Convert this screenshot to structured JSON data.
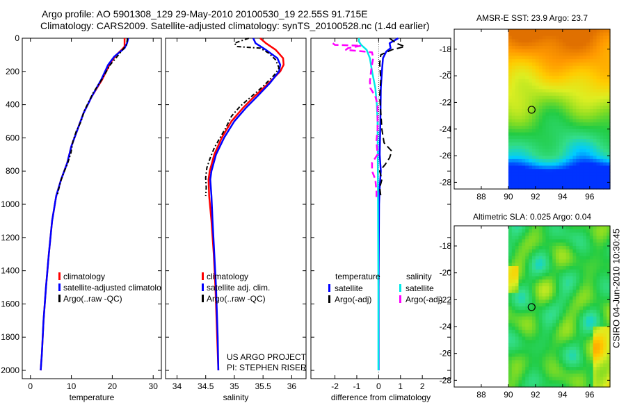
{
  "header": {
    "line1": "Argo profile: AO 5901308_129 29-May-2010 20100530_19 22.55S 91.715E",
    "line2": "Climatology: CARS2009. Satellite-adjusted climatology: synTS_20100528.nc (1.4d earlier)"
  },
  "side_label": "CSIRO 04-Jun-2010 10:30:45",
  "colors": {
    "red": "#ff0000",
    "blue": "#0000ff",
    "black": "#000000",
    "cyan": "#00e8e8",
    "magenta": "#ff00ff"
  },
  "chart_data": [
    {
      "type": "line",
      "id": "temperature",
      "xlabel": "temperature",
      "xlim": [
        -2,
        32
      ],
      "xticks": [
        0,
        10,
        20,
        30
      ],
      "ylim": [
        0,
        2050
      ],
      "yticks": [
        0,
        200,
        400,
        600,
        800,
        1000,
        1200,
        1400,
        1600,
        1800,
        2000
      ],
      "legend": {
        "position": "lower-center",
        "entries": [
          "climatology",
          "satellite-adjusted climatology",
          "Argo(..raw -QC)"
        ]
      },
      "series": [
        {
          "name": "climatology",
          "color": "red",
          "dash": "",
          "points": [
            [
              23.0,
              0
            ],
            [
              23.0,
              20
            ],
            [
              23.0,
              50
            ],
            [
              22.3,
              70
            ],
            [
              21.0,
              100
            ],
            [
              19.5,
              150
            ],
            [
              17.5,
              250
            ],
            [
              15.0,
              350
            ],
            [
              13.0,
              450
            ],
            [
              11.5,
              550
            ],
            [
              10.0,
              650
            ],
            [
              9.0,
              750
            ],
            [
              7.5,
              850
            ],
            [
              6.3,
              950
            ],
            [
              5.3,
              1100
            ],
            [
              4.5,
              1300
            ],
            [
              3.8,
              1500
            ],
            [
              3.2,
              1700
            ],
            [
              2.8,
              1900
            ],
            [
              2.5,
              2000
            ]
          ]
        },
        {
          "name": "satellite-adjusted climatology",
          "color": "blue",
          "dash": "",
          "points": [
            [
              23.9,
              0
            ],
            [
              23.6,
              30
            ],
            [
              23.0,
              60
            ],
            [
              22.0,
              80
            ],
            [
              20.5,
              110
            ],
            [
              19.0,
              160
            ],
            [
              17.3,
              250
            ],
            [
              15.0,
              350
            ],
            [
              13.0,
              450
            ],
            [
              11.5,
              550
            ],
            [
              10.0,
              650
            ],
            [
              9.0,
              750
            ],
            [
              7.5,
              850
            ],
            [
              6.3,
              950
            ],
            [
              5.3,
              1100
            ],
            [
              4.5,
              1300
            ],
            [
              3.8,
              1500
            ],
            [
              3.2,
              1700
            ],
            [
              2.8,
              1900
            ],
            [
              2.5,
              2000
            ]
          ]
        },
        {
          "name": "Argo(..raw -QC)",
          "color": "black",
          "dash": "6,3,2,3",
          "points": [
            [
              23.7,
              0
            ],
            [
              23.5,
              40
            ],
            [
              22.5,
              70
            ],
            [
              21.2,
              110
            ],
            [
              19.5,
              160
            ],
            [
              17.4,
              250
            ],
            [
              15.3,
              330
            ],
            [
              13.1,
              440
            ],
            [
              12.4,
              500
            ],
            [
              11.2,
              560
            ],
            [
              10.4,
              620
            ],
            [
              9.9,
              690
            ],
            [
              9.0,
              760
            ],
            [
              8.3,
              800
            ],
            [
              7.4,
              860
            ],
            [
              6.5,
              950
            ]
          ]
        }
      ]
    },
    {
      "type": "line",
      "id": "salinity",
      "xlabel": "salinity",
      "xlim": [
        33.8,
        36.25
      ],
      "xticks": [
        34,
        34.5,
        35,
        35.5,
        36
      ],
      "ylim": [
        0,
        2050
      ],
      "legend": {
        "position": "lower-center",
        "entries": [
          "climatology",
          "satellite adj. clim.",
          "Argo(..raw -QC)"
        ]
      },
      "annotation": [
        "US ARGO PROJECT",
        "PI: STEPHEN RISER"
      ],
      "series": [
        {
          "name": "climatology",
          "color": "red",
          "dash": "",
          "points": [
            [
              35.45,
              0
            ],
            [
              35.55,
              30
            ],
            [
              35.72,
              70
            ],
            [
              35.85,
              120
            ],
            [
              35.86,
              160
            ],
            [
              35.8,
              200
            ],
            [
              35.6,
              270
            ],
            [
              35.35,
              350
            ],
            [
              35.15,
              420
            ],
            [
              34.95,
              500
            ],
            [
              34.78,
              600
            ],
            [
              34.65,
              700
            ],
            [
              34.57,
              800
            ],
            [
              34.55,
              850
            ],
            [
              34.56,
              950
            ],
            [
              34.6,
              1100
            ],
            [
              34.64,
              1300
            ],
            [
              34.67,
              1500
            ],
            [
              34.7,
              1800
            ],
            [
              34.72,
              2000
            ]
          ]
        },
        {
          "name": "satellite adj. clim.",
          "color": "blue",
          "dash": "",
          "points": [
            [
              35.33,
              0
            ],
            [
              35.37,
              30
            ],
            [
              35.55,
              70
            ],
            [
              35.75,
              120
            ],
            [
              35.8,
              160
            ],
            [
              35.78,
              200
            ],
            [
              35.62,
              270
            ],
            [
              35.4,
              350
            ],
            [
              35.2,
              420
            ],
            [
              35.0,
              500
            ],
            [
              34.82,
              600
            ],
            [
              34.68,
              700
            ],
            [
              34.6,
              800
            ],
            [
              34.58,
              850
            ],
            [
              34.6,
              950
            ],
            [
              34.62,
              1100
            ],
            [
              34.65,
              1300
            ],
            [
              34.68,
              1500
            ],
            [
              34.71,
              1800
            ],
            [
              34.72,
              2000
            ]
          ]
        },
        {
          "name": "Argo(..raw -QC)",
          "color": "black",
          "dash": "6,3,2,3",
          "points": [
            [
              35.25,
              0
            ],
            [
              35.0,
              30
            ],
            [
              35.05,
              50
            ],
            [
              35.45,
              60
            ],
            [
              35.6,
              90
            ],
            [
              35.72,
              130
            ],
            [
              35.78,
              180
            ],
            [
              35.7,
              220
            ],
            [
              35.5,
              290
            ],
            [
              35.3,
              350
            ],
            [
              35.1,
              410
            ],
            [
              34.95,
              470
            ],
            [
              34.85,
              540
            ],
            [
              34.75,
              600
            ],
            [
              34.65,
              660
            ],
            [
              34.58,
              720
            ],
            [
              34.52,
              780
            ],
            [
              34.5,
              840
            ],
            [
              34.51,
              900
            ],
            [
              34.5,
              950
            ]
          ]
        }
      ]
    },
    {
      "type": "line",
      "id": "difference",
      "xlabel": "difference from climatology",
      "xlim": [
        -3.1,
        3.3
      ],
      "xticks": [
        -2,
        -1,
        0,
        1,
        2
      ],
      "ylim": [
        0,
        2050
      ],
      "legend": {
        "position": "lower-center",
        "groups": [
          "temperature",
          "salinity"
        ],
        "entries": [
          "satellite",
          "Argo(-adj)",
          "satellite",
          "Argo(-adj)"
        ]
      },
      "series": [
        {
          "name": "temperature satellite",
          "color": "blue",
          "dash": "",
          "points": [
            [
              0.9,
              0
            ],
            [
              0.5,
              30
            ],
            [
              0.55,
              60
            ],
            [
              0.35,
              80
            ],
            [
              0.2,
              120
            ],
            [
              0.15,
              200
            ],
            [
              0.1,
              300
            ],
            [
              0.08,
              500
            ],
            [
              0.05,
              700
            ],
            [
              0.1,
              800
            ],
            [
              0.05,
              900
            ],
            [
              0.02,
              1000
            ],
            [
              0.01,
              1200
            ],
            [
              0,
              1500
            ],
            [
              0,
              2000
            ]
          ]
        },
        {
          "name": "temperature Argo(-adj)",
          "color": "black",
          "dash": "9,5",
          "points": [
            [
              0.5,
              0
            ],
            [
              0.8,
              30
            ],
            [
              1.2,
              50
            ],
            [
              0.6,
              70
            ],
            [
              0.1,
              100
            ],
            [
              0.05,
              150
            ],
            [
              0.1,
              250
            ],
            [
              0.05,
              350
            ],
            [
              0.1,
              450
            ],
            [
              0.15,
              550
            ],
            [
              0.25,
              630
            ],
            [
              0.6,
              680
            ],
            [
              0.5,
              720
            ],
            [
              0.3,
              760
            ],
            [
              0.05,
              800
            ],
            [
              0.15,
              850
            ],
            [
              0.05,
              900
            ],
            [
              0.1,
              950
            ]
          ]
        },
        {
          "name": "salinity satellite",
          "color": "cyan",
          "dash": "",
          "points": [
            [
              -0.9,
              0
            ],
            [
              -0.9,
              20
            ],
            [
              -0.8,
              40
            ],
            [
              -0.55,
              70
            ],
            [
              -0.4,
              120
            ],
            [
              -0.3,
              200
            ],
            [
              -0.15,
              300
            ],
            [
              -0.08,
              400
            ],
            [
              -0.05,
              500
            ],
            [
              -0.04,
              700
            ],
            [
              -0.03,
              900
            ],
            [
              -0.02,
              1200
            ],
            [
              -0.01,
              1500
            ],
            [
              -0.01,
              2000
            ]
          ]
        },
        {
          "name": "salinity Argo(-adj)",
          "color": "magenta",
          "dash": "9,5",
          "points": [
            [
              -2.1,
              30
            ],
            [
              -2.0,
              40
            ],
            [
              -0.8,
              45
            ],
            [
              -1.4,
              60
            ],
            [
              -1.5,
              70
            ],
            [
              -0.3,
              85
            ],
            [
              -0.25,
              120
            ],
            [
              -0.3,
              160
            ],
            [
              -0.35,
              200
            ],
            [
              -0.4,
              260
            ],
            [
              -0.38,
              300
            ],
            [
              -0.15,
              350
            ],
            [
              -0.05,
              400
            ],
            [
              -0.05,
              450
            ],
            [
              -0.05,
              550
            ],
            [
              -0.1,
              620
            ],
            [
              -0.05,
              700
            ],
            [
              -0.3,
              750
            ],
            [
              -0.3,
              800
            ],
            [
              -0.15,
              850
            ],
            [
              -0.1,
              920
            ],
            [
              -0.1,
              960
            ]
          ]
        }
      ]
    },
    {
      "type": "heatmap",
      "id": "sst-map",
      "title": "AMSR-E SST: 23.9 Argo: 23.7",
      "xlim": [
        86,
        97.5
      ],
      "ylim": [
        -28.5,
        -16.5
      ],
      "xticks": [
        88,
        90,
        92,
        94,
        96
      ],
      "yticks": [
        -18,
        -20,
        -22,
        -24,
        -26,
        -28
      ],
      "data_lon_range": [
        90,
        97.5
      ],
      "float_position": {
        "lon": 91.715,
        "lat": -22.55
      }
    },
    {
      "type": "heatmap",
      "id": "sla-map",
      "title": "Altimetric SLA: 0.025 Argo: 0.04",
      "xlim": [
        86,
        97.5
      ],
      "ylim": [
        -28.5,
        -16.5
      ],
      "xticks": [
        88,
        90,
        92,
        94,
        96
      ],
      "yticks": [
        -18,
        -20,
        -22,
        -24,
        -26,
        -28
      ],
      "data_lon_range": [
        90,
        97.5
      ],
      "float_position": {
        "lon": 91.715,
        "lat": -22.55
      }
    }
  ]
}
